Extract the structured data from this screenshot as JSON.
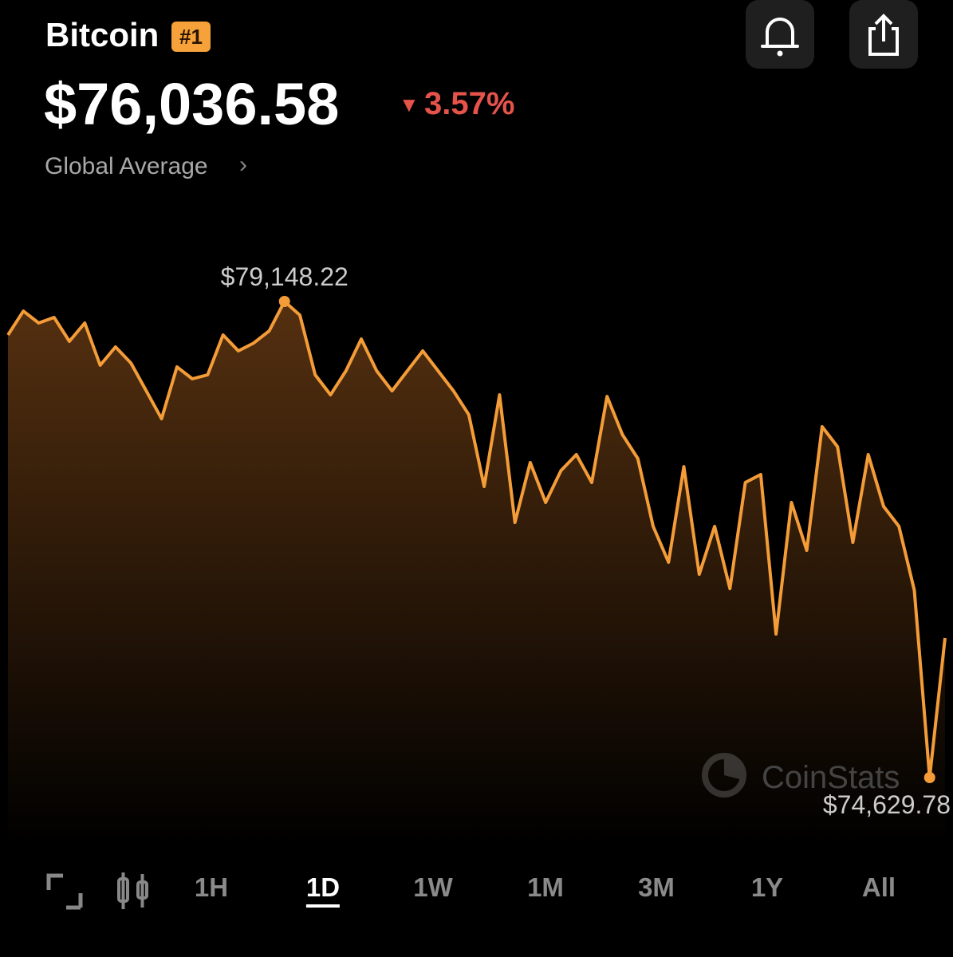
{
  "header": {
    "name": "Bitcoin",
    "rank": "#1",
    "price": "$76,036.58",
    "change": "3.57%",
    "source": "Global Average"
  },
  "chart_data": {
    "type": "line",
    "color": "#f39c38",
    "values": [
      78830,
      79057,
      78944,
      78997,
      78770,
      78944,
      78543,
      78717,
      78565,
      78300,
      78035,
      78527,
      78414,
      78452,
      78830,
      78679,
      78754,
      78868,
      79148.22,
      79019,
      78452,
      78262,
      78490,
      78792,
      78490,
      78300,
      78490,
      78679,
      78490,
      78300,
      78073,
      77392,
      78262,
      77051,
      77619,
      77241,
      77543,
      77695,
      77430,
      78247,
      77884,
      77657,
      77014,
      76673,
      77581,
      76559,
      77014,
      76423,
      77430,
      77506,
      75992,
      77241,
      76786,
      77960,
      77770,
      76862,
      77695,
      77203,
      77014,
      76408,
      74629.78,
      75954
    ],
    "value_labels": [
      null,
      null,
      null,
      null,
      null,
      null,
      null,
      null,
      null,
      null,
      null,
      null,
      null,
      null,
      null,
      null,
      null,
      null,
      "$79,148.22",
      null,
      null,
      null,
      null,
      null,
      null,
      null,
      null,
      null,
      null,
      null,
      null,
      null,
      null,
      null,
      null,
      null,
      null,
      null,
      null,
      null,
      null,
      null,
      null,
      null,
      null,
      null,
      null,
      null,
      null,
      null,
      null,
      null,
      null,
      null,
      null,
      null,
      null,
      null,
      null,
      null,
      "$74,629.78",
      null
    ],
    "watermark": "CoinStats"
  },
  "ranges": {
    "tabs": [
      "1H",
      "1D",
      "1W",
      "1M",
      "3M",
      "1Y",
      "All"
    ],
    "selected": "1D"
  }
}
